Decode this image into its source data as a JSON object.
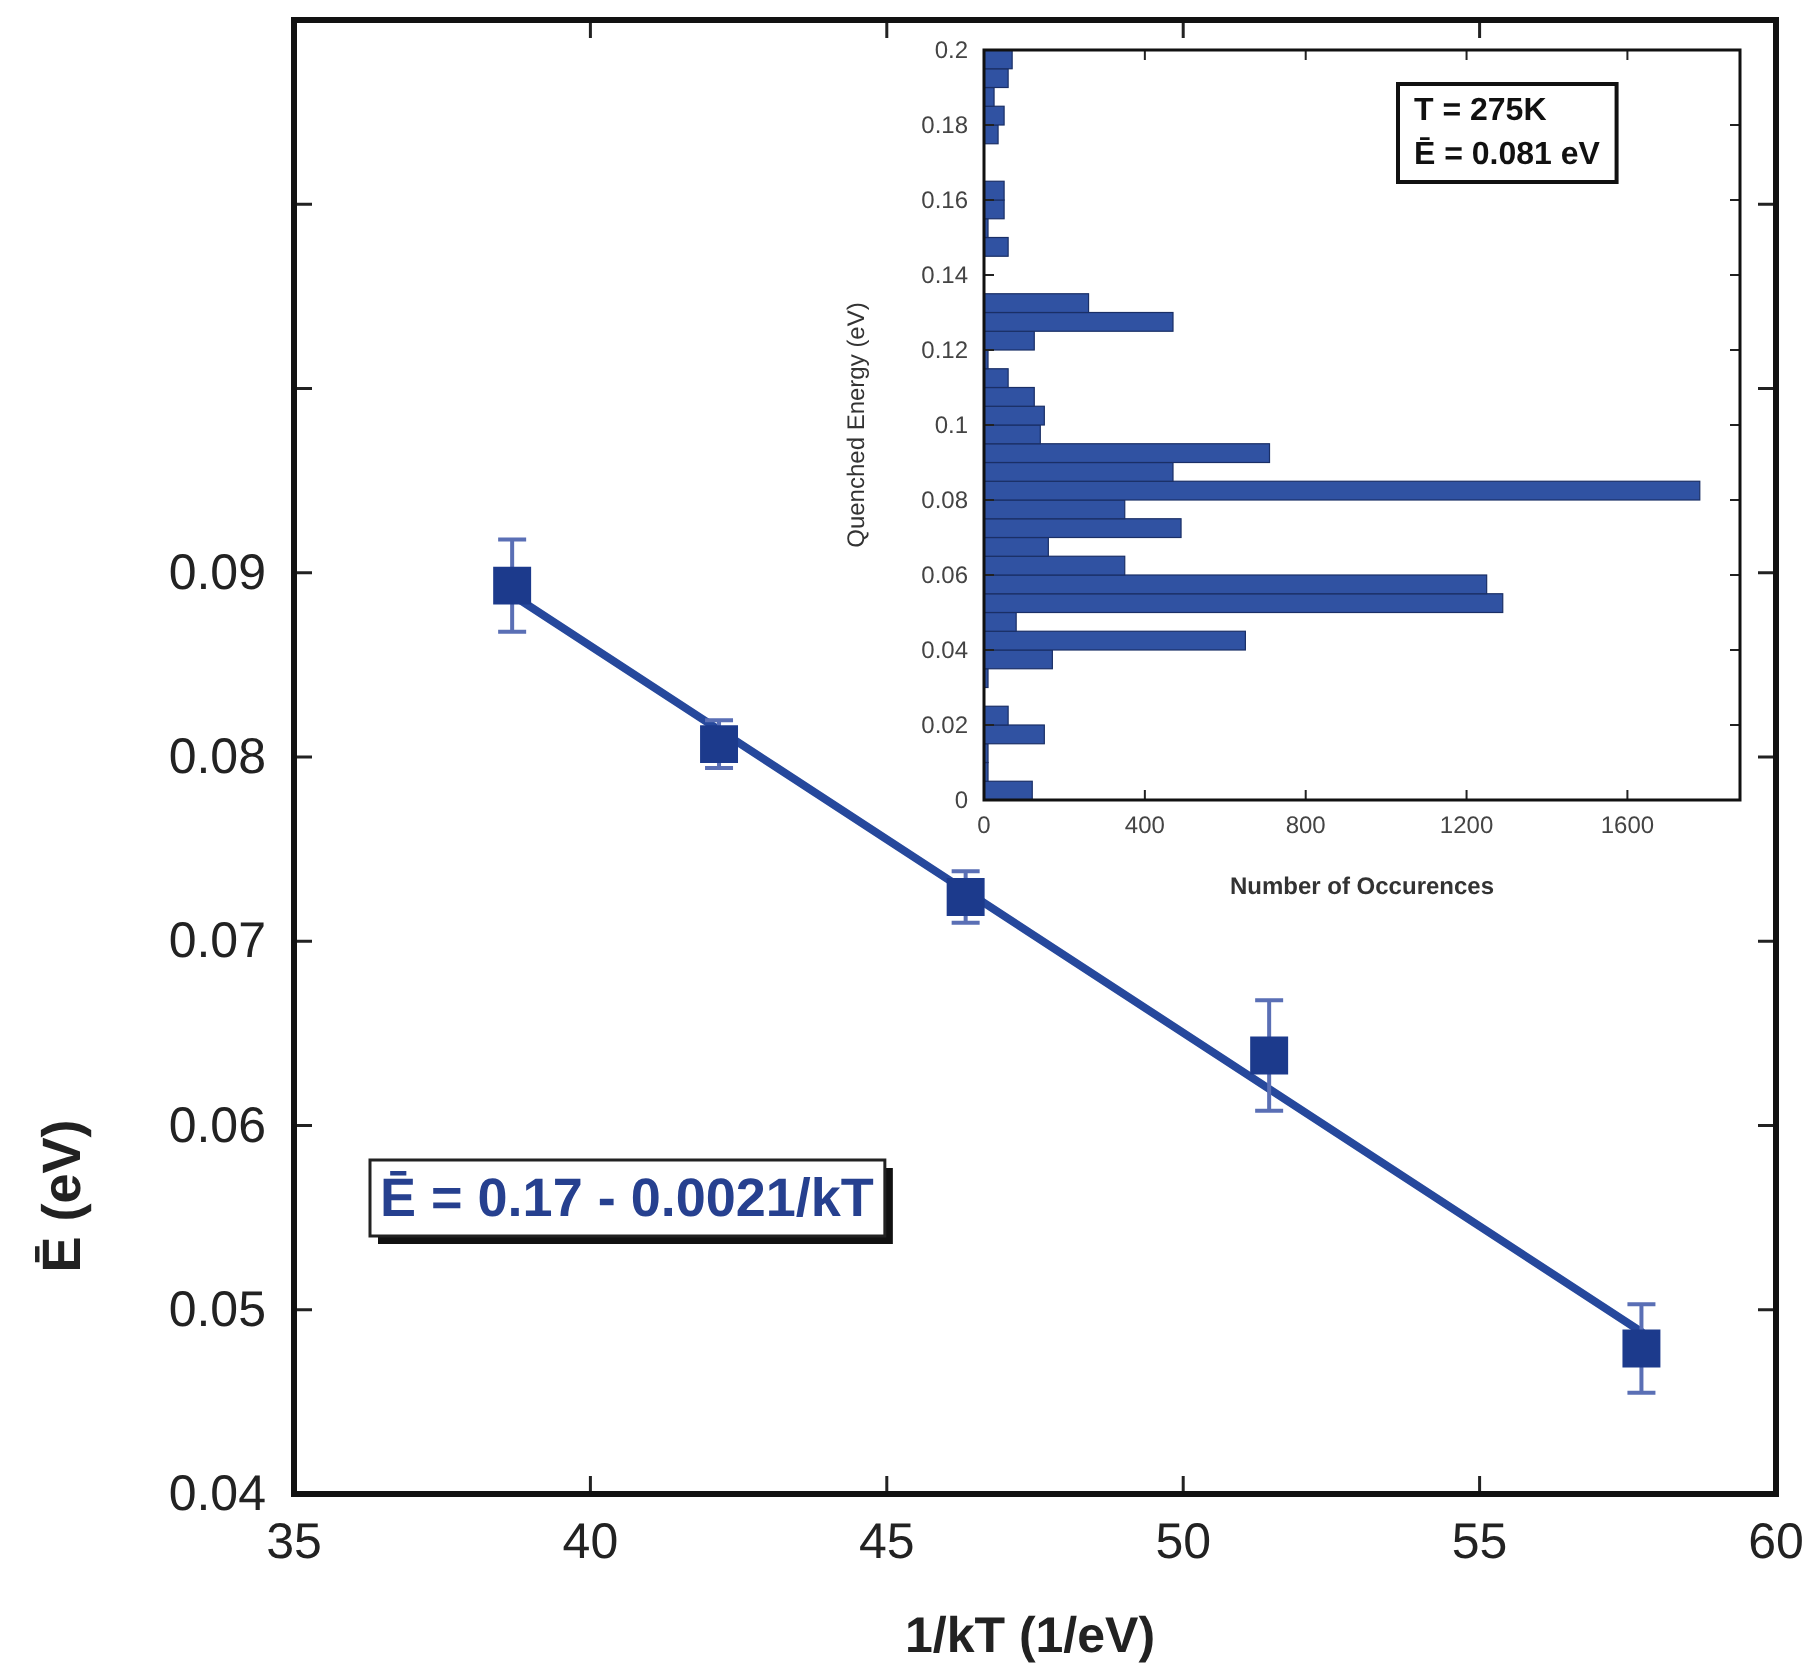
{
  "chart_data": [
    {
      "type": "scatter",
      "xlabel": "1/kT (1/eV)",
      "ylabel": "Ē (eV)",
      "xlim": [
        35,
        60
      ],
      "xticks": [
        35,
        40,
        45,
        50,
        55,
        60
      ],
      "ylim": [
        0.04,
        0.12
      ],
      "yticks": [
        0.04,
        0.05,
        0.06,
        0.07,
        0.08,
        0.09,
        {
          "value": 0.1,
          "label": null
        },
        {
          "value": 0.11,
          "label": null
        }
      ],
      "annotations": [
        "Ē = 0.17 - 0.0021/kT"
      ],
      "series": [
        {
          "type": "line",
          "color": "#26489c",
          "x": [
            38.68,
            57.73
          ],
          "values": [
            0.0888,
            0.0488
          ]
        },
        {
          "type": "scatter",
          "marker": "square",
          "color": "#1c3a8c",
          "x": [
            38.68,
            42.17,
            46.33,
            51.45,
            57.73
          ],
          "values": [
            0.0893,
            0.0807,
            0.0724,
            0.0638,
            0.0479
          ],
          "errors": [
            0.0025,
            0.0013,
            0.0014,
            0.003,
            0.0024
          ]
        }
      ]
    },
    {
      "type": "histogram",
      "orientation": "horizontal",
      "xlabel": "Number of Occurences",
      "ylabel": "Quenched Energy (eV)",
      "xlim": [
        0,
        1880
      ],
      "xticks": [
        0,
        400,
        800,
        1200,
        1600
      ],
      "ylim": [
        0,
        0.2
      ],
      "yticks": [
        0,
        0.02,
        0.04,
        0.06,
        0.08,
        0.1,
        0.12,
        0.14,
        0.16,
        0.18,
        0.2
      ],
      "color": "#3052a2",
      "annotations": [
        "T = 275K",
        "Ē = 0.081 eV"
      ],
      "bins": [
        0,
        0.005,
        0.01,
        0.015,
        0.02,
        0.025,
        0.03,
        0.035,
        0.04,
        0.045,
        0.05,
        0.055,
        0.06,
        0.065,
        0.07,
        0.075,
        0.08,
        0.085,
        0.09,
        0.095,
        0.1,
        0.105,
        0.11,
        0.115,
        0.12,
        0.125,
        0.13,
        0.135,
        0.14,
        0.145,
        0.15,
        0.155,
        0.16,
        0.165,
        0.17,
        0.175,
        0.18,
        0.185,
        0.19,
        0.195,
        0.2
      ],
      "values": [
        120,
        10,
        10,
        150,
        60,
        0,
        10,
        170,
        650,
        80,
        1290,
        1250,
        350,
        160,
        490,
        350,
        1780,
        470,
        710,
        140,
        150,
        125,
        60,
        10,
        125,
        470,
        260,
        0,
        0,
        60,
        10,
        50,
        50,
        0,
        0,
        35,
        50,
        25,
        60,
        70
      ]
    }
  ]
}
